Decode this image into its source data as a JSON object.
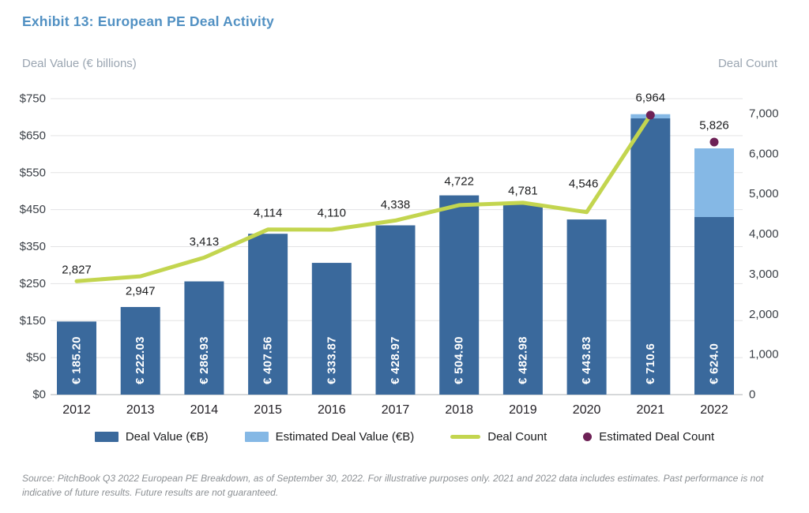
{
  "exhibit": {
    "title": "Exhibit 13: European PE Deal Activity",
    "left_axis_title": "Deal Value (€ billions)",
    "right_axis_title": "Deal Count",
    "source_note": "Source: PitchBook Q3 2022 European PE Breakdown, as of September 30, 2022. For illustrative purposes only. 2021 and 2022 data includes estimates. Past performance is not indicative of future results. Future results are not guaranteed."
  },
  "legend": [
    {
      "label": "Deal Value (€B)",
      "marker": "swatch",
      "color": "#3A699C"
    },
    {
      "label": "Estimated Deal Value (€B)",
      "marker": "swatch",
      "color": "#85B8E5"
    },
    {
      "label": "Deal Count",
      "marker": "line",
      "color": "#C3D54F"
    },
    {
      "label": "Estimated Deal Count",
      "marker": "dot",
      "color": "#6D2156"
    }
  ],
  "colors": {
    "title": "#5291C3",
    "axis_title_text": "#9AA5B1",
    "bar": "#3A699C",
    "bar_estimated": "#85B8E5",
    "line": "#C3D54F",
    "dot": "#6D2156",
    "gridline": "#E3E3E4",
    "baseline": "#C9CBCE",
    "tick_text": "#3A3F46",
    "label_text": "#1B1C1E",
    "year_text": "#232026",
    "bar_label_text": "#FFFFFF"
  },
  "chart_data": {
    "type": "bar+line combo",
    "title": "Exhibit 13: European PE Deal Activity",
    "categories": [
      "2012",
      "2013",
      "2014",
      "2015",
      "2016",
      "2017",
      "2018",
      "2019",
      "2020",
      "2021",
      "2022"
    ],
    "series": [
      {
        "name": "Deal Value (€B)",
        "type": "bar",
        "axis": "left",
        "values": [
          185.2,
          222.03,
          286.93,
          407.56,
          333.87,
          428.97,
          504.9,
          482.98,
          443.83,
          710.6,
          624.0
        ],
        "labels": [
          "€ 185.20",
          "€ 222.03",
          "€ 286.93",
          "€ 407.56",
          "€ 333.87",
          "€ 428.97",
          "€ 504.90",
          "€ 482.98",
          "€ 443.83",
          "€ 710.6",
          "€ 624.0"
        ]
      },
      {
        "name": "Estimated Deal Value (€B)",
        "type": "bar_top_segment",
        "axis": "left",
        "non_estimated_portion": [
          185.2,
          222.03,
          286.93,
          407.56,
          333.87,
          428.97,
          504.9,
          482.98,
          443.83,
          700,
          450
        ],
        "note": "2021 and 2022 bars are two-tone; upper light-blue segment is the estimated portion (split estimated visually from chart)"
      },
      {
        "name": "Deal Count",
        "type": "line",
        "axis": "right",
        "x": [
          "2012",
          "2013",
          "2014",
          "2015",
          "2016",
          "2017",
          "2018",
          "2019",
          "2020",
          "2021"
        ],
        "values": [
          2827,
          2947,
          3413,
          4114,
          4110,
          4338,
          4722,
          4781,
          4546,
          6964
        ],
        "labels": [
          "2,827",
          "2,947",
          "3,413",
          "4,114",
          "4,110",
          "4,338",
          "4,722",
          "4,781",
          "4,546",
          "6,964"
        ]
      },
      {
        "name": "Estimated Deal Count",
        "type": "point",
        "axis": "right",
        "x": [
          "2021",
          "2022"
        ],
        "values": [
          6964,
          5826
        ],
        "labels": [
          "6,964",
          "5,826"
        ]
      }
    ],
    "left_axis": {
      "ticks": [
        "$750",
        "$650",
        "$550",
        "$450",
        "$350",
        "$250",
        "$150",
        "$50",
        "$0"
      ],
      "range": [
        0,
        750
      ]
    },
    "right_axis": {
      "ticks": [
        "7,000",
        "6,000",
        "5,000",
        "4,000",
        "3,000",
        "2,000",
        "1,000",
        "0"
      ],
      "range": [
        0,
        7000
      ]
    },
    "grid": "horizontal",
    "legend_position": "bottom"
  }
}
